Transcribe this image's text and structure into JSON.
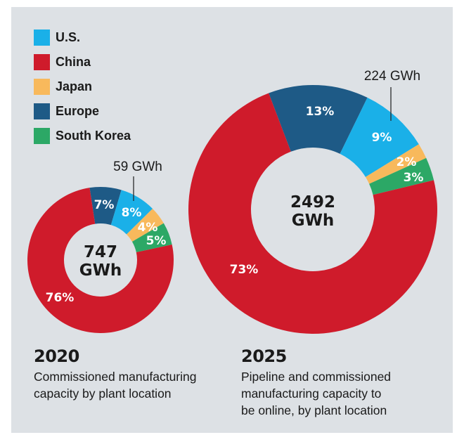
{
  "colors": {
    "panel": "#dde1e5",
    "text": "#1a1a1a",
    "U.S.": "#1ab0e8",
    "China": "#cf1b2b",
    "Japan": "#f8b95c",
    "Europe": "#1e5a86",
    "South Korea": "#2ca866"
  },
  "legend": [
    {
      "label": "U.S.",
      "color": "#1ab0e8"
    },
    {
      "label": "China",
      "color": "#cf1b2b"
    },
    {
      "label": "Japan",
      "color": "#f8b95c"
    },
    {
      "label": "Europe",
      "color": "#1e5a86"
    },
    {
      "label": "South Korea",
      "color": "#2ca866"
    }
  ],
  "captions": {
    "y2020": {
      "year": "2020",
      "desc_lines": [
        "Commissioned manufacturing",
        "capacity by plant location"
      ]
    },
    "y2025": {
      "year": "2025",
      "desc_lines": [
        "Pipeline and commissioned",
        "manufacturing capacity to",
        "be online, by plant location"
      ]
    }
  },
  "chart_data": [
    {
      "type": "pie",
      "variant": "donut",
      "title": "2020",
      "subtitle": "Commissioned manufacturing capacity by plant location",
      "total_label": [
        "747",
        "GWh"
      ],
      "total_value": 747,
      "unit": "GWh",
      "callout": {
        "category": "U.S.",
        "text": "59 GWh"
      },
      "categories": [
        "Europe",
        "U.S.",
        "Japan",
        "South Korea",
        "China"
      ],
      "values": [
        7,
        8,
        4,
        5,
        76
      ],
      "labels": [
        "7%",
        "8%",
        "4%",
        "5%",
        "76%"
      ]
    },
    {
      "type": "pie",
      "variant": "donut",
      "title": "2025",
      "subtitle": "Pipeline and commissioned manufacturing capacity to be online, by plant location",
      "total_label": [
        "2492",
        "GWh"
      ],
      "total_value": 2492,
      "unit": "GWh",
      "callout": {
        "category": "U.S.",
        "text": "224 GWh"
      },
      "categories": [
        "Europe",
        "U.S.",
        "Japan",
        "South Korea",
        "China"
      ],
      "values": [
        13,
        9,
        2,
        3,
        73
      ],
      "labels": [
        "13%",
        "9%",
        "2%",
        "3%",
        "73%"
      ]
    }
  ]
}
